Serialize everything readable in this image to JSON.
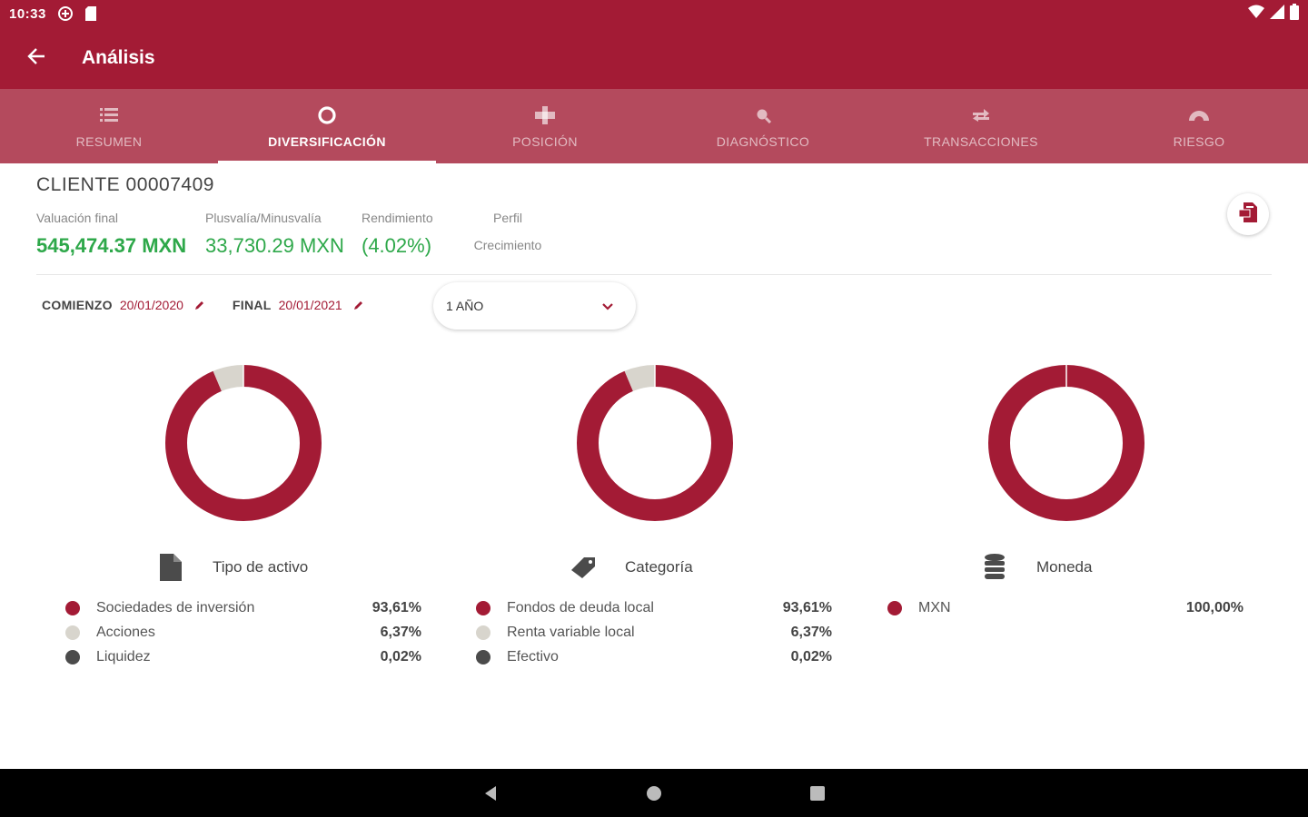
{
  "status_bar": {
    "time": "10:33"
  },
  "app_bar": {
    "title": "Análisis"
  },
  "tabs": [
    {
      "label": "RESUMEN",
      "icon": "list-icon"
    },
    {
      "label": "DIVERSIFICACIÓN",
      "icon": "ring-icon",
      "active": true
    },
    {
      "label": "POSICIÓN",
      "icon": "position-icon"
    },
    {
      "label": "DIAGNÓSTICO",
      "icon": "diagnosis-icon"
    },
    {
      "label": "TRANSACCIONES",
      "icon": "transactions-icon"
    },
    {
      "label": "RIESGO",
      "icon": "gauge-icon"
    }
  ],
  "client": {
    "name": "CLIENTE 00007409",
    "metrics": [
      {
        "label": "Valuación final",
        "value": "545,474.37 MXN"
      },
      {
        "label": "Plusvalía/Minusvalía",
        "value": "33,730.29 MXN"
      },
      {
        "label": "Rendimiento",
        "value": "(4.02%)"
      },
      {
        "label": "Perfil",
        "value": "Crecimiento"
      }
    ]
  },
  "dates": {
    "start_label": "COMIENZO",
    "start_value": "20/01/2020",
    "end_label": "FINAL",
    "end_value": "20/01/2021",
    "period": "1 AÑO"
  },
  "colors": {
    "primary": "#a31b35",
    "tab_bg": "#b44a5d",
    "light": "#d8d5cd",
    "dark": "#4b4b4b",
    "positive": "#2ea84a"
  },
  "chart_data": [
    {
      "type": "pie",
      "title": "Tipo de activo",
      "categories": [
        "Sociedades de inversión",
        "Acciones",
        "Liquidez"
      ],
      "values": [
        93.61,
        6.37,
        0.02
      ],
      "labels": [
        "93,61%",
        "6,37%",
        "0,02%"
      ],
      "colors": [
        "#a31b35",
        "#d8d5cd",
        "#4b4b4b"
      ]
    },
    {
      "type": "pie",
      "title": "Categoría",
      "categories": [
        "Fondos de deuda local",
        "Renta variable local",
        "Efectivo"
      ],
      "values": [
        93.61,
        6.37,
        0.02
      ],
      "labels": [
        "93,61%",
        "6,37%",
        "0,02%"
      ],
      "colors": [
        "#a31b35",
        "#d8d5cd",
        "#4b4b4b"
      ]
    },
    {
      "type": "pie",
      "title": "Moneda",
      "categories": [
        "MXN"
      ],
      "values": [
        100.0
      ],
      "labels": [
        "100,00%"
      ],
      "colors": [
        "#a31b35"
      ]
    }
  ]
}
